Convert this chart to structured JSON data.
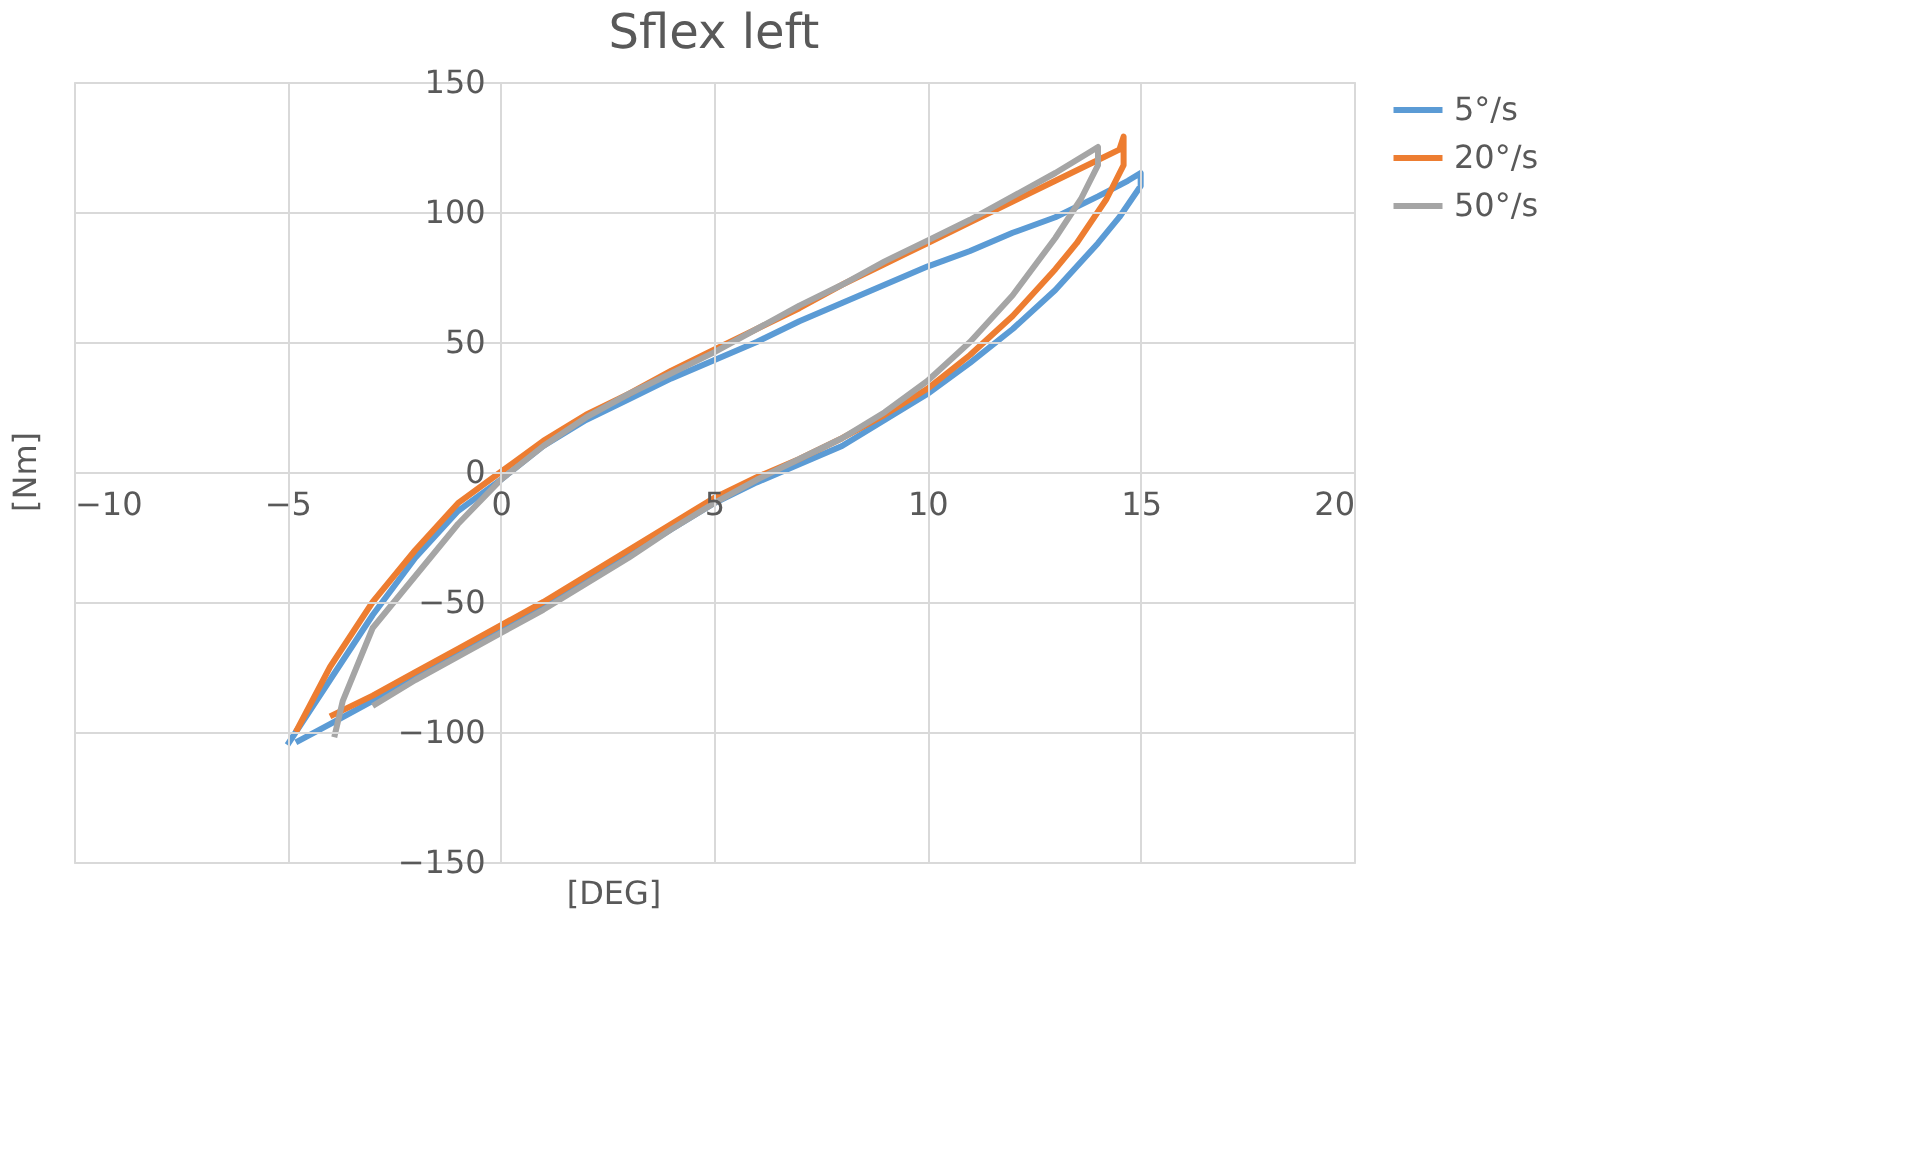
{
  "chart_data": {
    "type": "line",
    "title": "Sflex left",
    "xlabel": "[DEG]",
    "ylabel": "[Nm]",
    "xlim": [
      -10,
      20
    ],
    "xticks": [
      -10,
      -5,
      0,
      5,
      10,
      15,
      20
    ],
    "ylim": [
      -150,
      150
    ],
    "yticks": [
      -150,
      -100,
      -50,
      0,
      50,
      100,
      150
    ],
    "grid": true,
    "legend": "right",
    "marker": "none",
    "line_style": "solid",
    "series": [
      {
        "name": "5°/s",
        "color": "#5b9bd5",
        "x": [
          -5,
          -4,
          -3,
          -2,
          -1,
          0,
          1,
          2,
          3,
          4,
          5,
          6,
          7,
          8,
          9,
          10,
          11,
          12,
          13,
          14,
          14.7,
          15,
          15,
          14.5,
          14,
          13,
          12,
          11,
          10,
          9,
          8,
          7,
          6,
          5,
          4,
          3,
          2,
          1,
          0,
          -1,
          -2,
          -3,
          -4,
          -4.8
        ],
        "values": [
          -105,
          -80,
          -55,
          -33,
          -15,
          -3,
          10,
          20,
          28,
          36,
          43,
          50,
          58,
          65,
          72,
          79,
          85,
          92,
          98,
          106,
          112,
          115,
          110,
          98,
          88,
          70,
          55,
          42,
          30,
          20,
          10,
          3,
          -4,
          -12,
          -22,
          -32,
          -42,
          -52,
          -61,
          -70,
          -79,
          -88,
          -97,
          -104
        ]
      },
      {
        "name": "20°/s",
        "color": "#ed7d31",
        "x": [
          -4.8,
          -4,
          -3,
          -2,
          -1,
          0,
          1,
          2,
          3,
          4,
          5,
          6,
          7,
          8,
          9,
          10,
          11,
          12,
          13,
          14,
          14.5,
          14.6,
          14.6,
          14.2,
          13.5,
          13,
          12,
          11,
          10,
          9,
          8,
          7,
          6,
          5,
          4,
          3,
          2,
          1,
          0,
          -1,
          -2,
          -3,
          -4
        ],
        "values": [
          -100,
          -75,
          -50,
          -30,
          -12,
          0,
          12,
          22,
          30,
          39,
          47,
          55,
          63,
          72,
          80,
          88,
          96,
          104,
          112,
          120,
          124,
          129,
          118,
          105,
          88,
          78,
          60,
          45,
          32,
          22,
          13,
          5,
          -2,
          -10,
          -20,
          -30,
          -40,
          -50,
          -59,
          -68,
          -77,
          -86,
          -94
        ]
      },
      {
        "name": "50°/s",
        "color": "#a5a5a5",
        "x": [
          -3.9,
          -3.7,
          -3,
          -2,
          -1,
          0,
          1,
          2,
          3,
          4,
          5,
          6,
          7,
          8,
          9,
          10,
          11,
          12,
          13,
          13.8,
          14,
          14,
          13.6,
          13,
          12,
          11,
          10,
          9,
          8,
          7,
          6,
          5,
          4,
          3,
          2,
          1,
          0,
          -1,
          -2,
          -3
        ],
        "values": [
          -102,
          -88,
          -60,
          -40,
          -20,
          -3,
          10,
          21,
          30,
          38,
          46,
          55,
          64,
          72,
          81,
          89,
          97,
          106,
          115,
          123,
          125,
          118,
          105,
          90,
          68,
          50,
          35,
          23,
          13,
          5,
          -3,
          -12,
          -22,
          -33,
          -43,
          -53,
          -62,
          -71,
          -80,
          -90
        ]
      }
    ]
  }
}
